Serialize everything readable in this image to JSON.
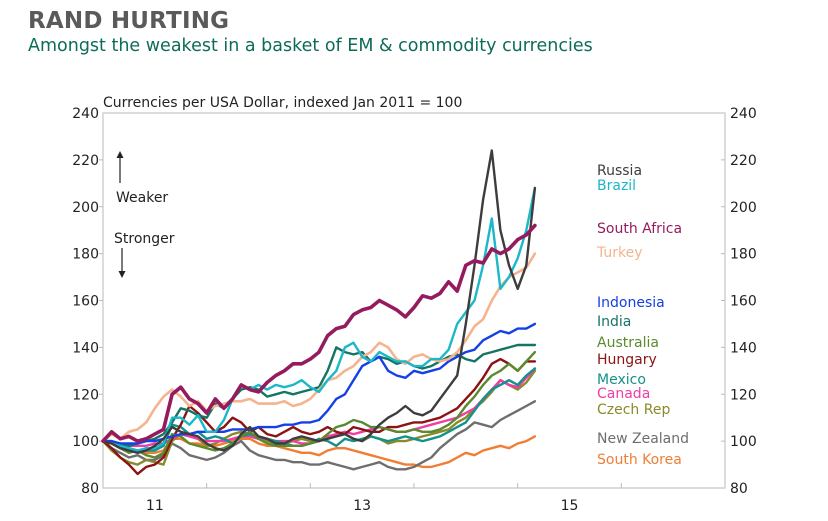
{
  "header": {
    "title": "RAND HURTING",
    "subtitle": "Amongst the weakest in a basket of EM & commodity currencies"
  },
  "chart_data": {
    "type": "line",
    "title": "RAND HURTING",
    "subtitle": "Amongst the weakest in a basket of EM & commodity currencies",
    "ylabel": "Currencies per USA Dollar, indexed Jan 2011 = 100",
    "xlabel": "",
    "ylim": [
      80,
      240
    ],
    "yticks": [
      80,
      100,
      120,
      140,
      160,
      180,
      200,
      220,
      240
    ],
    "xlim": [
      2011.0,
      2017.0
    ],
    "xticks": [
      {
        "value": 2011.5,
        "label": "11"
      },
      {
        "value": 2013.5,
        "label": "13"
      },
      {
        "value": 2015.5,
        "label": "15"
      }
    ],
    "xgrid_ticks": [
      2012,
      2013,
      2014,
      2015,
      2016
    ],
    "grid": false,
    "dual_y_axis": true,
    "annotations": {
      "weaker": "Weaker",
      "stronger": "Stronger"
    },
    "x_start": 2011.0,
    "x_step_months": 1,
    "series": [
      {
        "name": "Russia",
        "color": "#3d3d3d",
        "width": 2.4,
        "values": [
          100,
          99,
          97,
          96,
          95,
          96,
          98,
          101,
          106,
          104,
          103,
          102,
          99,
          97,
          96,
          98,
          103,
          106,
          102,
          101,
          99,
          99,
          101,
          102,
          101,
          100,
          101,
          102,
          103,
          101,
          100,
          103,
          107,
          110,
          112,
          115,
          112,
          111,
          113,
          118,
          123,
          128,
          150,
          175,
          203,
          224,
          190,
          175,
          165,
          175,
          208
        ]
      },
      {
        "name": "Brazil",
        "color": "#1ab8c8",
        "width": 2.4,
        "values": [
          100,
          99,
          98,
          97,
          96,
          97,
          97,
          99,
          110,
          110,
          107,
          111,
          104,
          104,
          109,
          118,
          124,
          122,
          124,
          122,
          124,
          123,
          124,
          126,
          123,
          121,
          126,
          130,
          140,
          142,
          136,
          134,
          138,
          136,
          134,
          134,
          132,
          132,
          135,
          135,
          139,
          150,
          155,
          160,
          175,
          195,
          165,
          170,
          178,
          190,
          208
        ]
      },
      {
        "name": "South Africa",
        "color": "#951b5f",
        "width": 3.6,
        "values": [
          100,
          104,
          101,
          102,
          100,
          101,
          103,
          105,
          120,
          123,
          118,
          116,
          112,
          118,
          114,
          118,
          124,
          122,
          121,
          125,
          128,
          130,
          133,
          133,
          135,
          138,
          145,
          148,
          149,
          154,
          156,
          157,
          160,
          158,
          156,
          153,
          157,
          162,
          161,
          163,
          168,
          164,
          175,
          177,
          176,
          182,
          180,
          182,
          186,
          188,
          192
        ]
      },
      {
        "name": "Turkey",
        "color": "#f5b48e",
        "width": 2.6,
        "values": [
          100,
          103,
          101,
          104,
          105,
          108,
          114,
          119,
          122,
          119,
          115,
          117,
          113,
          115,
          116,
          117,
          117,
          118,
          116,
          116,
          116,
          117,
          115,
          116,
          118,
          122,
          126,
          127,
          130,
          132,
          136,
          138,
          142,
          140,
          135,
          133,
          136,
          137,
          135,
          134,
          135,
          138,
          143,
          149,
          152,
          160,
          166,
          170,
          172,
          174,
          180
        ]
      },
      {
        "name": "Indonesia",
        "color": "#1440e6",
        "width": 2.4,
        "values": [
          100,
          100,
          99,
          99,
          99,
          100,
          100,
          101,
          102,
          103,
          103,
          104,
          104,
          104,
          104,
          105,
          105,
          105,
          106,
          106,
          106,
          107,
          107,
          108,
          108,
          109,
          113,
          118,
          120,
          126,
          132,
          134,
          136,
          130,
          128,
          127,
          130,
          129,
          130,
          131,
          134,
          136,
          138,
          139,
          143,
          145,
          147,
          146,
          148,
          148,
          150
        ]
      },
      {
        "name": "India",
        "color": "#157462",
        "width": 2.4,
        "values": [
          100,
          100,
          99,
          98,
          99,
          100,
          101,
          103,
          108,
          114,
          113,
          111,
          110,
          116,
          114,
          118,
          122,
          123,
          122,
          119,
          120,
          121,
          120,
          121,
          122,
          123,
          130,
          140,
          138,
          137,
          138,
          134,
          136,
          135,
          133,
          134,
          132,
          131,
          132,
          134,
          136,
          137,
          135,
          134,
          137,
          138,
          139,
          140,
          141,
          141,
          141
        ]
      },
      {
        "name": "Australia",
        "color": "#5b8a2e",
        "width": 2.4,
        "values": [
          100,
          99,
          97,
          95,
          96,
          94,
          93,
          95,
          103,
          102,
          99,
          98,
          97,
          96,
          97,
          99,
          102,
          104,
          101,
          99,
          98,
          98,
          98,
          98,
          99,
          100,
          103,
          106,
          107,
          109,
          108,
          106,
          106,
          105,
          104,
          104,
          105,
          104,
          104,
          105,
          107,
          110,
          115,
          119,
          124,
          128,
          130,
          133,
          130,
          134,
          138
        ]
      },
      {
        "name": "Hungary",
        "color": "#8b1313",
        "width": 2.4,
        "values": [
          100,
          97,
          93,
          90,
          86,
          89,
          90,
          93,
          101,
          107,
          115,
          112,
          108,
          104,
          106,
          110,
          108,
          104,
          106,
          103,
          102,
          104,
          106,
          104,
          103,
          104,
          106,
          104,
          103,
          106,
          105,
          104,
          104,
          106,
          106,
          107,
          108,
          108,
          109,
          110,
          112,
          114,
          118,
          122,
          127,
          133,
          135,
          133,
          130,
          134,
          134
        ]
      },
      {
        "name": "Mexico",
        "color": "#13918c",
        "width": 2.4,
        "values": [
          100,
          99,
          98,
          97,
          96,
          96,
          96,
          98,
          107,
          106,
          103,
          104,
          101,
          102,
          101,
          99,
          102,
          103,
          102,
          101,
          100,
          99,
          98,
          98,
          99,
          101,
          100,
          98,
          101,
          100,
          101,
          102,
          101,
          100,
          101,
          102,
          101,
          100,
          101,
          102,
          104,
          106,
          108,
          113,
          118,
          122,
          124,
          126,
          124,
          128,
          131
        ]
      },
      {
        "name": "Canada",
        "color": "#f03ca6",
        "width": 2.4,
        "values": [
          100,
          99,
          99,
          98,
          98,
          98,
          99,
          99,
          101,
          103,
          102,
          101,
          100,
          100,
          100,
          101,
          102,
          102,
          101,
          101,
          100,
          100,
          100,
          99,
          99,
          100,
          102,
          103,
          104,
          103,
          104,
          105,
          106,
          105,
          104,
          104,
          105,
          106,
          107,
          108,
          109,
          110,
          112,
          114,
          118,
          122,
          126,
          124,
          123,
          127,
          131
        ]
      },
      {
        "name": "Czech Rep",
        "color": "#8a8a2a",
        "width": 2.4,
        "values": [
          100,
          96,
          93,
          91,
          90,
          92,
          91,
          90,
          100,
          103,
          102,
          101,
          98,
          99,
          101,
          103,
          104,
          103,
          101,
          100,
          99,
          99,
          100,
          101,
          100,
          100,
          102,
          102,
          103,
          101,
          100,
          102,
          101,
          99,
          100,
          100,
          101,
          102,
          103,
          104,
          105,
          108,
          110,
          114,
          117,
          121,
          126,
          124,
          122,
          125,
          130
        ]
      },
      {
        "name": "New Zealand",
        "color": "#6e6e6e",
        "width": 2.4,
        "values": [
          100,
          97,
          95,
          93,
          94,
          92,
          92,
          94,
          99,
          97,
          94,
          93,
          92,
          93,
          95,
          98,
          100,
          96,
          94,
          93,
          92,
          92,
          91,
          91,
          90,
          90,
          91,
          90,
          89,
          88,
          89,
          90,
          91,
          89,
          88,
          88,
          89,
          91,
          93,
          97,
          100,
          103,
          105,
          108,
          107,
          106,
          109,
          111,
          113,
          115,
          117
        ]
      },
      {
        "name": "South Korea",
        "color": "#f07d33",
        "width": 2.4,
        "values": [
          100,
          99,
          97,
          96,
          96,
          95,
          95,
          96,
          101,
          101,
          99,
          99,
          98,
          98,
          99,
          100,
          101,
          101,
          99,
          98,
          98,
          97,
          96,
          95,
          95,
          94,
          96,
          97,
          97,
          96,
          95,
          94,
          93,
          92,
          91,
          90,
          90,
          89,
          89,
          90,
          91,
          93,
          95,
          94,
          96,
          97,
          98,
          97,
          99,
          100,
          102
        ]
      }
    ],
    "series_labels_order": [
      "Russia",
      "Brazil",
      "South Africa",
      "Turkey",
      "Indonesia",
      "India",
      "Australia",
      "Hungary",
      "Mexico",
      "Canada",
      "Czech Rep",
      "New Zealand",
      "South Korea"
    ]
  }
}
